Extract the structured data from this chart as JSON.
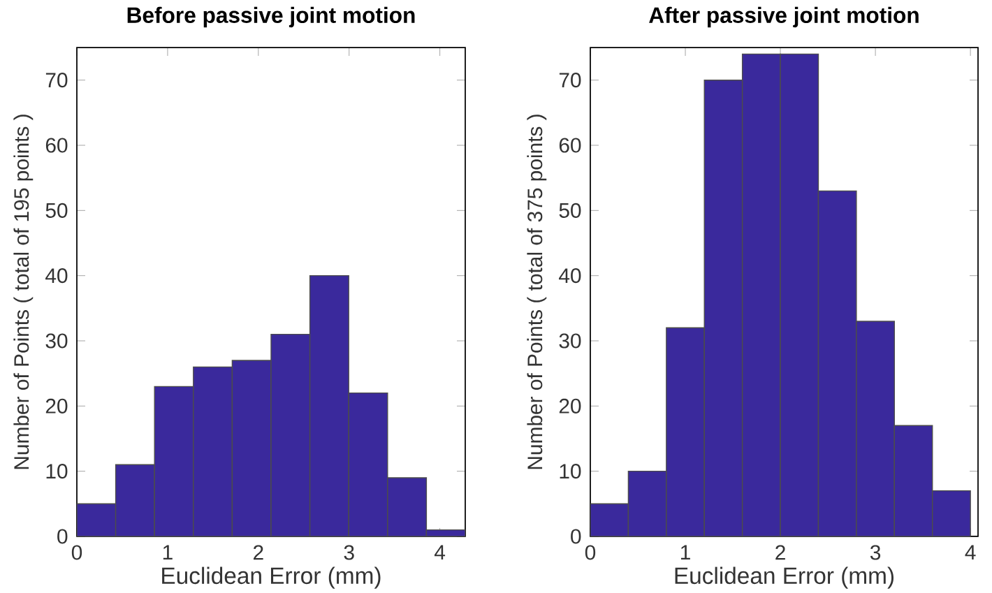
{
  "chart_data": [
    {
      "type": "histogram",
      "title": "Before passive joint motion",
      "xlabel": "Euclidean Error (mm)",
      "ylabel": "Number of Points ( total of 195 points )",
      "bins": [
        0,
        0.428,
        0.856,
        1.284,
        1.712,
        2.14,
        2.568,
        2.996,
        3.424,
        3.852,
        4.28
      ],
      "values": [
        5,
        11,
        23,
        26,
        27,
        31,
        40,
        22,
        9,
        1
      ],
      "color": "#3a299c",
      "xlim": [
        0,
        4.28
      ],
      "ylim": [
        0,
        75
      ],
      "xticks": [
        0,
        1,
        2,
        3,
        4
      ],
      "yticks": [
        0,
        10,
        20,
        30,
        40,
        50,
        60,
        70
      ]
    },
    {
      "type": "histogram",
      "title": "After passive joint motion",
      "xlabel": "Euclidean Error (mm)",
      "ylabel": "Number of Points ( total of 375 points )",
      "bins": [
        0,
        0.4,
        0.8,
        1.2,
        1.6,
        2.0,
        2.4,
        2.8,
        3.2,
        3.6,
        4.0
      ],
      "values": [
        5,
        10,
        32,
        70,
        74,
        74,
        53,
        33,
        17,
        7
      ],
      "color": "#3a299c",
      "xlim": [
        0,
        4.08
      ],
      "ylim": [
        0,
        75
      ],
      "xticks": [
        0,
        1,
        2,
        3,
        4
      ],
      "yticks": [
        0,
        10,
        20,
        30,
        40,
        50,
        60,
        70
      ]
    }
  ]
}
